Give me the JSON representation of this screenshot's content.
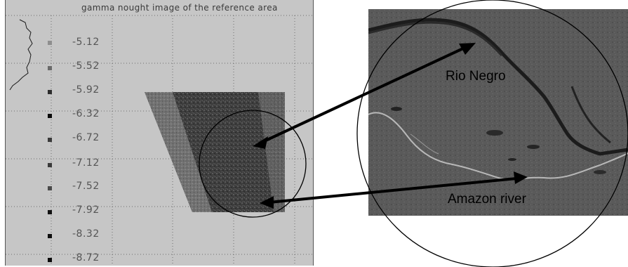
{
  "plot": {
    "title": "gamma nought image of the reference area",
    "scale_values": [
      "-5.12",
      "-5.52",
      "-5.92",
      "-6.32",
      "-6.72",
      "-7.12",
      "-7.52",
      "-7.92",
      "-8.32",
      "-8.72"
    ],
    "swatch_colors": [
      "#8f8f8f",
      "#6a6a6a",
      "#2c2c2c",
      "#0a0a0a",
      "#3a3a3a",
      "#3a3a3a",
      "#4a4a4a",
      "#111111",
      "#0e0e0e",
      "#0a0a0a"
    ]
  },
  "photo": {
    "label_rio_negro": "Rio Negro",
    "label_amazon": "Amazon river"
  },
  "colors": {
    "plot_background": "#c6c6c6",
    "photo_background": "#5b5b5b",
    "outline": "#000000"
  }
}
